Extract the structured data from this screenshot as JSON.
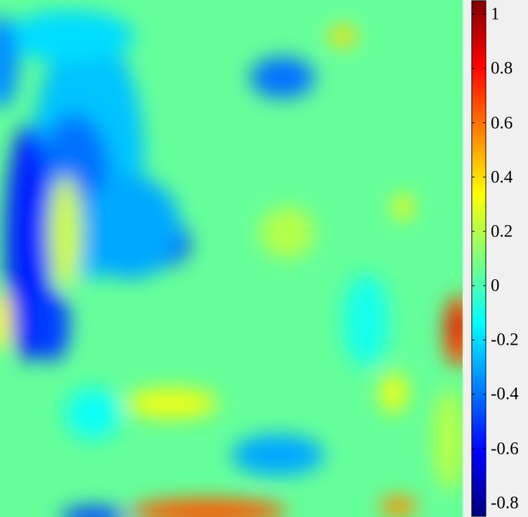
{
  "chart_data": {
    "type": "heatmap",
    "title": "",
    "xlabel": "",
    "ylabel": "",
    "colormap": "jet",
    "clim": [
      -0.85,
      1.05
    ],
    "colorbar": {
      "placement": "right",
      "ticks": [
        1,
        0.8,
        0.6,
        0.4,
        0.2,
        0,
        -0.2,
        -0.4,
        -0.6,
        -0.8
      ],
      "tick_labels": [
        "1",
        "0.8",
        "0.6",
        "0.4",
        "0.2",
        "0",
        "-0.2",
        "-0.4",
        "-0.6",
        "-0.8"
      ]
    },
    "background_value": 0.05,
    "features": [
      {
        "x": 0.17,
        "y": 0.8,
        "rx": 0.07,
        "ry": 0.08,
        "value": -0.55
      },
      {
        "x": 0.19,
        "y": 0.7,
        "rx": 0.12,
        "ry": 0.24,
        "value": -0.25
      },
      {
        "x": 0.16,
        "y": 0.65,
        "rx": 0.08,
        "ry": 0.13,
        "value": -0.4
      },
      {
        "x": 0.33,
        "y": 0.53,
        "rx": 0.08,
        "ry": 0.05,
        "value": -0.55
      },
      {
        "x": 0.28,
        "y": 0.56,
        "rx": 0.11,
        "ry": 0.1,
        "value": -0.3
      },
      {
        "x": 0.06,
        "y": 0.53,
        "rx": 0.05,
        "ry": 0.23,
        "value": -0.55
      },
      {
        "x": 0.11,
        "y": 0.37,
        "rx": 0.04,
        "ry": 0.07,
        "value": -0.5
      },
      {
        "x": 0.14,
        "y": 0.55,
        "rx": 0.035,
        "ry": 0.11,
        "value": 0.25
      },
      {
        "x": 0.99,
        "y": 0.36,
        "rx": 0.03,
        "ry": 0.07,
        "value": 0.7
      },
      {
        "x": 0.985,
        "y": 0.37,
        "rx": 0.015,
        "ry": 0.03,
        "value": 0.9
      },
      {
        "x": 0.45,
        "y": 0.01,
        "rx": 0.17,
        "ry": 0.025,
        "value": 0.65
      },
      {
        "x": 0.86,
        "y": 0.02,
        "rx": 0.04,
        "ry": 0.02,
        "value": 0.55
      },
      {
        "x": 0.6,
        "y": 0.12,
        "rx": 0.1,
        "ry": 0.04,
        "value": -0.3
      },
      {
        "x": 0.61,
        "y": 0.85,
        "rx": 0.07,
        "ry": 0.04,
        "value": -0.4
      },
      {
        "x": 0.15,
        "y": 0.93,
        "rx": 0.14,
        "ry": 0.05,
        "value": -0.2
      },
      {
        "x": 0.0,
        "y": 0.88,
        "rx": 0.04,
        "ry": 0.09,
        "value": -0.35
      },
      {
        "x": 0.85,
        "y": 0.24,
        "rx": 0.03,
        "ry": 0.04,
        "value": 0.3
      },
      {
        "x": 0.37,
        "y": 0.22,
        "rx": 0.1,
        "ry": 0.03,
        "value": 0.3
      },
      {
        "x": 0.87,
        "y": 0.6,
        "rx": 0.02,
        "ry": 0.025,
        "value": 0.35
      },
      {
        "x": 0.74,
        "y": 0.93,
        "rx": 0.03,
        "ry": 0.02,
        "value": 0.4
      },
      {
        "x": 0.0,
        "y": 0.38,
        "rx": 0.025,
        "ry": 0.06,
        "value": 0.35
      },
      {
        "x": 0.2,
        "y": 0.0,
        "rx": 0.07,
        "ry": 0.02,
        "value": -0.5
      },
      {
        "x": 0.79,
        "y": 0.38,
        "rx": 0.05,
        "ry": 0.09,
        "value": -0.1
      },
      {
        "x": 0.2,
        "y": 0.2,
        "rx": 0.06,
        "ry": 0.05,
        "value": -0.12
      },
      {
        "x": 0.97,
        "y": 0.15,
        "rx": 0.035,
        "ry": 0.1,
        "value": 0.2
      },
      {
        "x": 0.62,
        "y": 0.55,
        "rx": 0.06,
        "ry": 0.05,
        "value": 0.2
      }
    ]
  }
}
